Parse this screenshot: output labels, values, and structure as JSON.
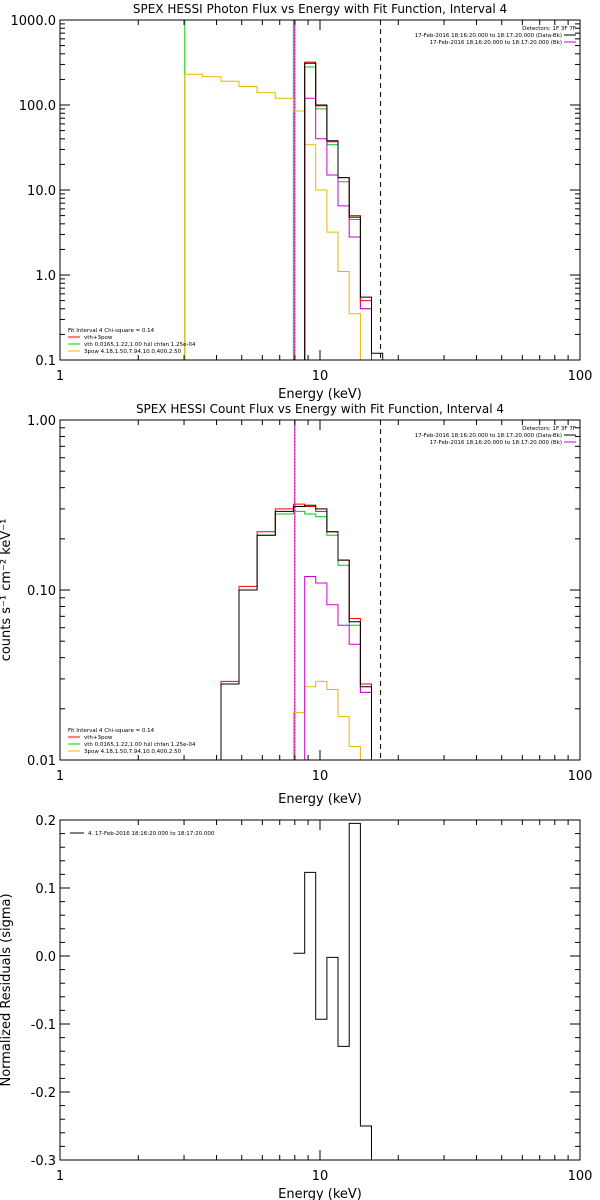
{
  "chart_data": [
    {
      "type": "line",
      "title": "SPEX HESSI Photon Flux vs Energy with Fit Function, Interval 4",
      "xlabel": "Energy (keV)",
      "ylabel": "",
      "xscale": "log",
      "yscale": "log",
      "xlim": [
        1,
        100
      ],
      "ylim": [
        0.1,
        1000
      ],
      "xticks": [
        "1",
        "10",
        "100"
      ],
      "yticks": [
        "0.1",
        "1.0",
        "10.0",
        "100.0",
        "1000.0"
      ],
      "info": [
        "Detectors: 1F 3F 7F",
        "17-Feb-2016 18:16:20.000 to 18:17:20.000 (Data-Bk)",
        "17-Feb-2016 18:16:20.000 to 18:17:20.000 (Bk)"
      ],
      "legend": [
        "Fit Interval 4   Chi-square = 0.14",
        "vth+3pow",
        "vth 0.0165,1.22,1.00  full chfan 1.25e-04",
        "3pow 4.18,1.50,7.94,10.0,400,2.50"
      ],
      "edges": [
        3.02,
        3.54,
        4.16,
        4.88,
        5.73,
        6.73,
        7.9,
        8.73,
        9.63,
        10.63,
        11.73,
        12.95,
        14.3,
        15.78,
        17.42
      ],
      "series": [
        {
          "name": "17-Feb-2016 18:16:20.000 to 18:17:20.000 (Data-Bk)",
          "color": "#000000",
          "values": [
            null,
            null,
            null,
            null,
            null,
            null,
            null,
            310,
            100,
            38,
            14,
            4.8,
            0.55,
            0.12
          ]
        },
        {
          "name": "17-Feb-2016 18:16:20.000 to 18:17:20.000 (Bk)",
          "color": "#cc00cc",
          "values": [
            null,
            null,
            null,
            null,
            null,
            null,
            null,
            120,
            40,
            15,
            6.5,
            2.8,
            0.4,
            null
          ]
        },
        {
          "name": "vth+3pow",
          "color": "#ff0000",
          "values": [
            null,
            null,
            null,
            null,
            null,
            null,
            null,
            320,
            98,
            37,
            14,
            5,
            0.5,
            0.1
          ]
        },
        {
          "name": "vth 0.0165,1.22,1.00  full chfan 1.25e-04",
          "color": "#00cc00",
          "values": [
            null,
            null,
            null,
            null,
            null,
            null,
            null,
            280,
            90,
            34,
            12.5,
            4.5,
            0.4,
            null
          ]
        },
        {
          "name": "3pow 4.18,1.50,7.94,10.0,400,2.50",
          "color": "#e6b800",
          "values": [
            230,
            215,
            190,
            165,
            140,
            120,
            85,
            34,
            10,
            3.2,
            1.1,
            0.35,
            null,
            null
          ]
        }
      ],
      "vlines": [
        {
          "x": 8.0,
          "style": "dotted",
          "color": "#000000"
        },
        {
          "x": 8.0,
          "style": "solid",
          "color": "#cc00cc"
        },
        {
          "x": 17.1,
          "style": "dashed",
          "color": "#000000"
        }
      ],
      "green_rise_x": [
        3.02,
        7.9
      ]
    },
    {
      "type": "line",
      "title": "SPEX HESSI Count Flux vs Energy with Fit Function, Interval 4",
      "xlabel": "Energy (keV)",
      "ylabel": "counts s⁻¹ cm⁻² keV⁻¹",
      "xscale": "log",
      "yscale": "log",
      "xlim": [
        1,
        100
      ],
      "ylim": [
        0.01,
        1
      ],
      "xticks": [
        "1",
        "10",
        "100"
      ],
      "yticks": [
        "0.01",
        "0.10",
        "1.00"
      ],
      "info": [
        "Detectors: 1F 3F 7F",
        "17-Feb-2016 18:16:20.000 to 18:17:20.000 (Data-Bk)",
        "17-Feb-2016 18:16:20.000 to 18:17:20.000 (Bk)"
      ],
      "legend": [
        "Fit Interval 4   Chi-square = 0.14",
        "vth+3pow",
        "vth 0.0165,1.22,1.00  full chfan 1.25e-04",
        "3pow 4.18,1.50,7.94,10.0,400,2.50"
      ],
      "edges": [
        3.02,
        3.54,
        4.16,
        4.88,
        5.73,
        6.73,
        7.9,
        8.73,
        9.63,
        10.63,
        11.73,
        12.95,
        14.3,
        15.78,
        17.42
      ],
      "series": [
        {
          "name": "17-Feb-2016 18:16:20.000 to 18:17:20.000 (Data-Bk)",
          "color": "#000000",
          "values": [
            null,
            null,
            0.028,
            0.1,
            0.21,
            0.29,
            0.31,
            0.315,
            0.3,
            0.22,
            0.15,
            0.065,
            0.027,
            null
          ]
        },
        {
          "name": "17-Feb-2016 18:16:20.000 to 18:17:20.000 (Bk)",
          "color": "#cc00cc",
          "values": [
            null,
            null,
            null,
            null,
            null,
            null,
            null,
            0.12,
            0.11,
            0.082,
            0.062,
            0.048,
            0.025,
            null
          ]
        },
        {
          "name": "vth+3pow",
          "color": "#ff0000",
          "values": [
            null,
            null,
            0.029,
            0.105,
            0.22,
            0.3,
            0.32,
            0.31,
            0.29,
            0.22,
            0.15,
            0.068,
            0.028,
            null
          ]
        },
        {
          "name": "vth 0.0165,1.22,1.00  full chfan 1.25e-04",
          "color": "#00cc00",
          "values": [
            null,
            null,
            0.028,
            0.1,
            0.21,
            0.28,
            0.29,
            0.28,
            0.27,
            0.21,
            0.14,
            0.062,
            0.025,
            null
          ]
        },
        {
          "name": "3pow 4.18,1.50,7.94,10.0,400,2.50",
          "color": "#e6b800",
          "values": [
            null,
            null,
            null,
            null,
            null,
            null,
            0.019,
            0.027,
            0.029,
            0.026,
            0.018,
            0.012,
            null,
            null
          ]
        }
      ],
      "vlines": [
        {
          "x": 8.0,
          "style": "dotted",
          "color": "#000000"
        },
        {
          "x": 8.0,
          "style": "solid",
          "color": "#cc00cc"
        },
        {
          "x": 17.1,
          "style": "dashed",
          "color": "#000000"
        }
      ]
    },
    {
      "type": "line",
      "title": "",
      "xlabel": "Energy (keV)",
      "ylabel": "Normalized Residuals (sigma)",
      "xscale": "log",
      "yscale": "linear",
      "xlim": [
        1,
        100
      ],
      "ylim": [
        -0.3,
        0.2
      ],
      "xticks": [
        "1",
        "10",
        "100"
      ],
      "yticks": [
        "-0.3",
        "-0.2",
        "-0.1",
        "0.0",
        "0.1",
        "0.2"
      ],
      "legend": [
        "4. 17-Feb-2016 18:16:20.000 to 18:17:20.000"
      ],
      "edges": [
        7.9,
        8.73,
        9.63,
        10.63,
        11.73,
        12.95,
        14.3,
        15.78
      ],
      "series": [
        {
          "name": "4. 17-Feb-2016 18:16:20.000 to 18:17:20.000",
          "color": "#000000",
          "values": [
            0.004,
            0.123,
            -0.093,
            -0.002,
            -0.133,
            0.195,
            -0.25
          ]
        }
      ]
    }
  ]
}
